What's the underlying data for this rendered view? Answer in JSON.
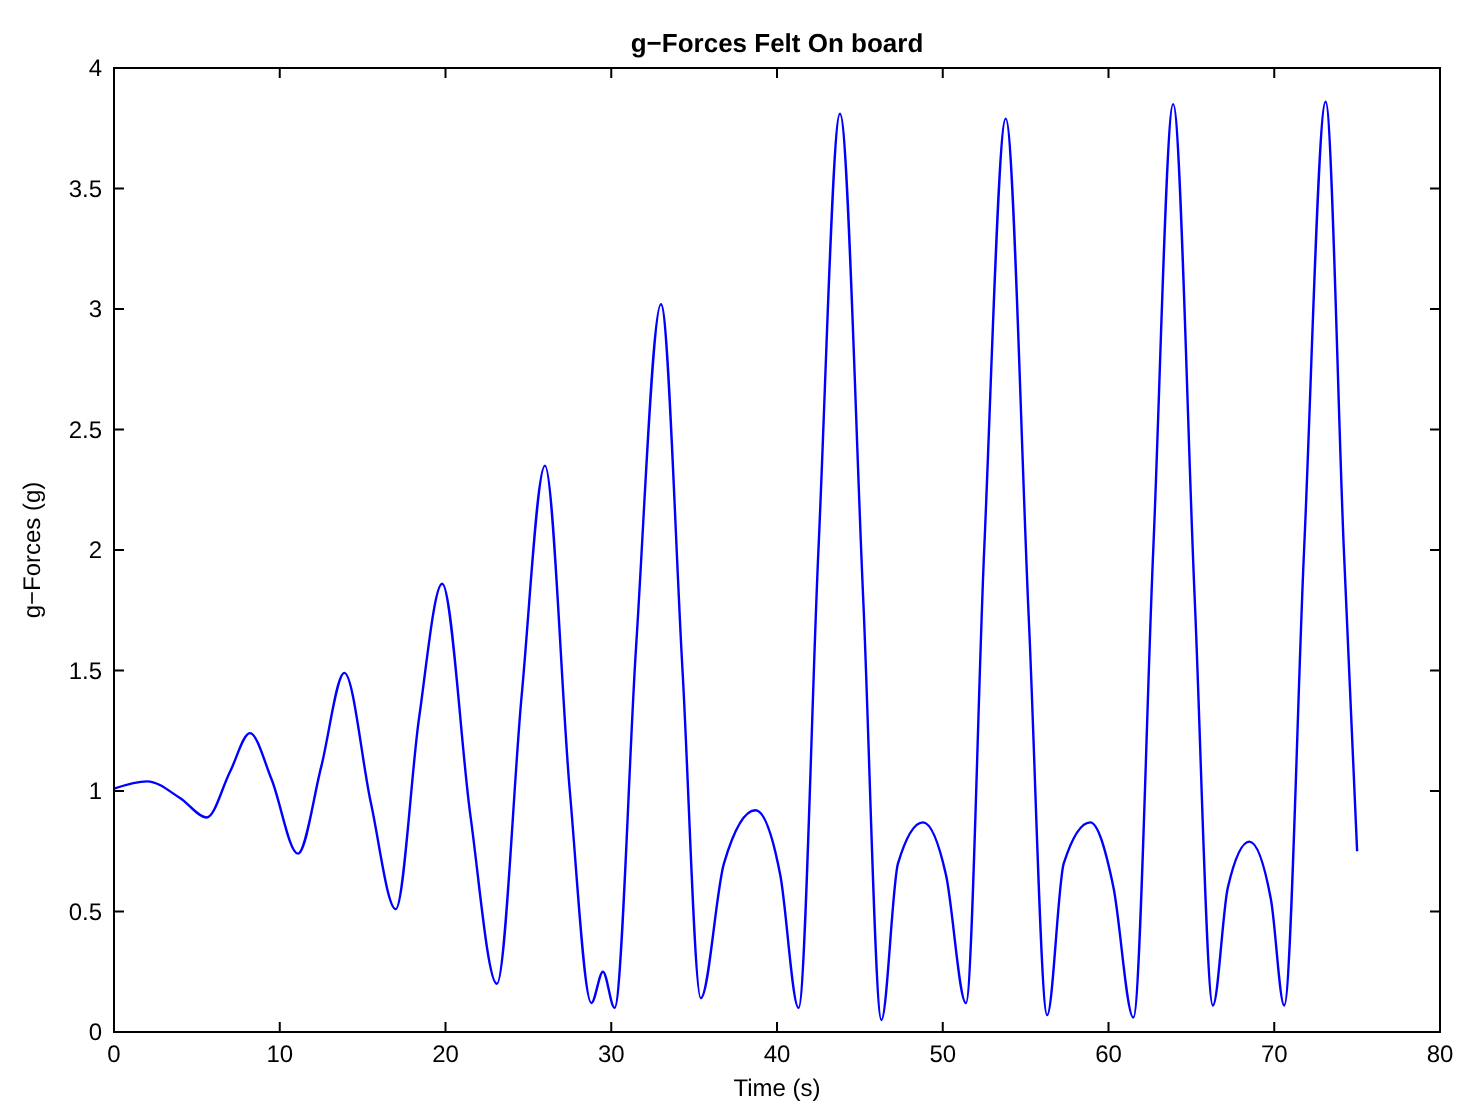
{
  "chart_data": {
    "type": "line",
    "title": "g−Forces Felt On board",
    "xlabel": "Time (s)",
    "ylabel": "g−Forces (g)",
    "xlim": [
      0,
      80
    ],
    "xticks": [
      0,
      10,
      20,
      30,
      40,
      50,
      60,
      70,
      80
    ],
    "ylim": [
      0,
      4
    ],
    "yticks": [
      0,
      0.5,
      1,
      1.5,
      2,
      2.5,
      3,
      3.5,
      4
    ],
    "grid": false,
    "line_style": "solid",
    "series": [
      {
        "color": "#0000ff",
        "x": [
          0,
          2,
          4,
          5.6,
          7,
          8.2,
          9.5,
          11.1,
          12.5,
          13.9,
          15.5,
          17,
          18.4,
          19.8,
          21.5,
          23.1,
          24.6,
          26,
          27.5,
          28.8,
          29.5,
          30.2,
          31.5,
          33,
          34.3,
          35.4,
          36.8,
          38.7,
          40.2,
          41.3,
          42.5,
          43.8,
          45.2,
          46.3,
          47.3,
          48.8,
          50.2,
          51.4,
          52.5,
          53.8,
          55.2,
          56.3,
          57.3,
          58.9,
          60.3,
          61.5,
          62.7,
          63.9,
          65.2,
          66.3,
          67.2,
          68.5,
          69.8,
          70.6,
          71.8,
          73.1,
          74.2,
          75
        ],
        "values": [
          1.01,
          1.04,
          0.97,
          0.89,
          1.08,
          1.24,
          1.05,
          0.74,
          1.1,
          1.49,
          0.95,
          0.51,
          1.3,
          1.86,
          0.9,
          0.2,
          1.4,
          2.35,
          1.0,
          0.12,
          0.25,
          0.1,
          1.6,
          3.02,
          1.5,
          0.14,
          0.7,
          0.92,
          0.65,
          0.1,
          2.0,
          3.81,
          1.8,
          0.05,
          0.7,
          0.87,
          0.65,
          0.12,
          2.0,
          3.79,
          1.7,
          0.07,
          0.7,
          0.87,
          0.6,
          0.06,
          2.0,
          3.85,
          1.8,
          0.11,
          0.6,
          0.79,
          0.55,
          0.11,
          2.0,
          3.86,
          2.0,
          0.75
        ]
      }
    ]
  }
}
